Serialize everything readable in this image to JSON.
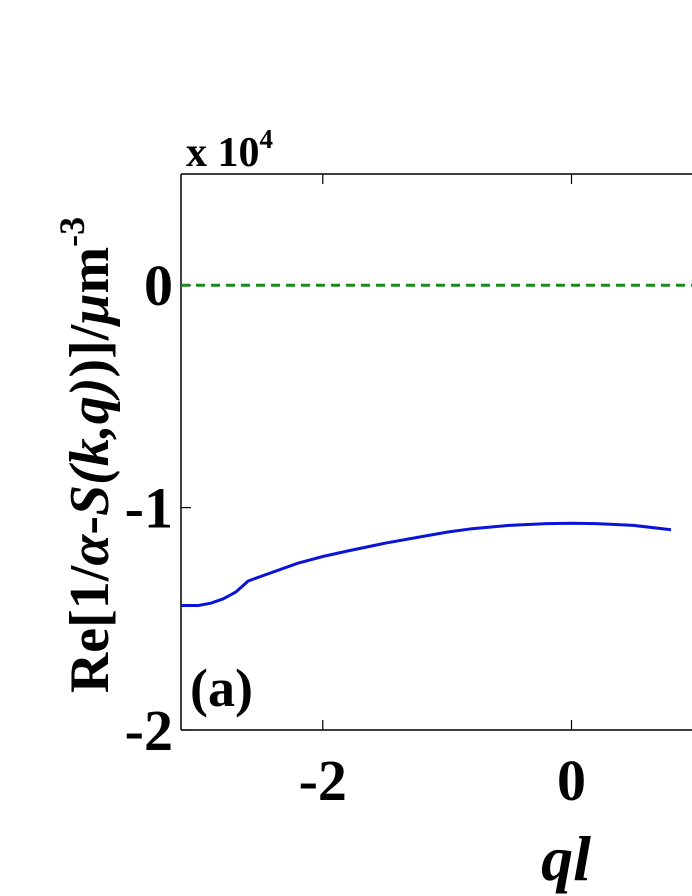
{
  "chart_data": {
    "type": "line",
    "title": "",
    "xlabel": "ql",
    "ylabel_parts": [
      "Re[1/",
      "α",
      "-",
      "S(k,q)",
      ")]/",
      "μ",
      "m"
    ],
    "ylabel_exponent": "-3",
    "y_multiplier": "x 10",
    "y_multiplier_exponent": "4",
    "panel_label": "(a)",
    "xlim": [
      -3.14,
      3.14
    ],
    "ylim": [
      -2,
      0.5
    ],
    "x_ticks": [
      -2,
      0
    ],
    "x_tick_labels": [
      "-2",
      "0"
    ],
    "y_ticks": [
      0,
      -1,
      -2
    ],
    "y_tick_labels": [
      "0",
      "-1",
      "-2"
    ],
    "grid": false,
    "series": [
      {
        "color": "#0a14d8",
        "style": "solid",
        "x": [
          -3.14,
          -3.0,
          -2.9,
          -2.8,
          -2.7,
          -2.6,
          -2.5,
          -2.2,
          -2.0,
          -1.8,
          -1.5,
          -1.2,
          -1.0,
          -0.8,
          -0.5,
          -0.2,
          0.0,
          0.2,
          0.5,
          0.8
        ],
        "y": [
          -1.44,
          -1.44,
          -1.43,
          -1.41,
          -1.38,
          -1.33,
          -1.31,
          -1.25,
          -1.22,
          -1.195,
          -1.16,
          -1.13,
          -1.11,
          -1.095,
          -1.08,
          -1.072,
          -1.07,
          -1.072,
          -1.08,
          -1.1
        ]
      },
      {
        "color": "#1a8a1a",
        "style": "dashed",
        "x": [
          -3.14,
          3.14
        ],
        "y": [
          0,
          0
        ]
      }
    ]
  }
}
